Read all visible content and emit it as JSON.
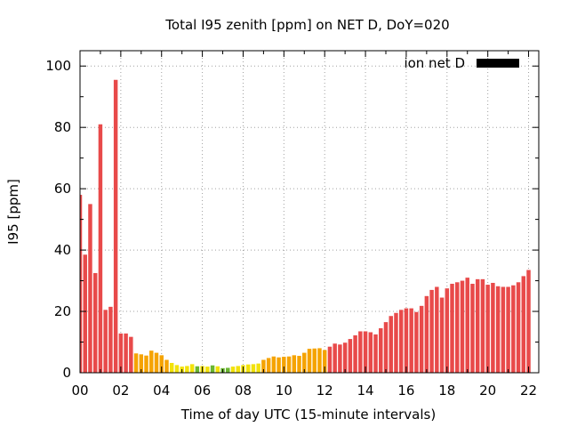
{
  "chart_data": {
    "type": "bar",
    "title": "Total I95 zenith [ppm] on NET D, DoY=020",
    "xlabel": "Time of day UTC (15-minute intervals)",
    "ylabel": "I95 [ppm]",
    "xlim": [
      0,
      22.5
    ],
    "ylim": [
      0,
      105
    ],
    "x_ticks": [
      "00",
      "02",
      "04",
      "06",
      "08",
      "10",
      "12",
      "14",
      "16",
      "18",
      "20",
      "22"
    ],
    "y_ticks": [
      "0",
      "20",
      "40",
      "60",
      "80",
      "100"
    ],
    "grid": true,
    "bar_interval_hours": 0.25,
    "legend": {
      "label": "ion net D",
      "position": "top-right",
      "color": "#000000"
    },
    "colors": {
      "red": "#e84a4a",
      "orange": "#f5a300",
      "yellow": "#f2e20a",
      "green": "#6ab630"
    },
    "series": [
      {
        "name": "ion net D",
        "values": [
          58,
          38.5,
          55,
          32.5,
          81,
          20.5,
          21.5,
          95.5,
          12.8,
          12.8,
          11.7,
          6.3,
          6,
          5.6,
          7.2,
          6.5,
          5.7,
          4.2,
          3.2,
          2.5,
          2,
          2.2,
          2.8,
          2.1,
          2.2,
          2,
          2.4,
          2.1,
          1.5,
          1.6,
          2,
          2.2,
          2.5,
          2.7,
          2.8,
          3,
          4.2,
          4.8,
          5.3,
          5,
          5.2,
          5.3,
          5.7,
          5.5,
          6.5,
          7.8,
          7.9,
          8,
          7.4,
          8.5,
          9.5,
          9.2,
          9.8,
          11,
          12.2,
          13.5,
          13.5,
          13.2,
          12.5,
          14.5,
          16.5,
          18.5,
          19.5,
          20.5,
          21,
          21,
          19.8,
          21.8,
          25,
          27,
          28,
          24.5,
          27.5,
          29,
          29.5,
          30,
          31,
          29,
          30.5,
          30.5,
          28.7,
          29.3,
          28.2,
          28,
          28,
          28.5,
          29.5,
          31.5,
          33.5
        ],
        "colors": [
          "red",
          "red",
          "red",
          "red",
          "red",
          "red",
          "red",
          "red",
          "red",
          "red",
          "red",
          "orange",
          "orange",
          "orange",
          "orange",
          "orange",
          "orange",
          "orange",
          "yellow",
          "yellow",
          "yellow",
          "yellow",
          "yellow",
          "green",
          "yellow",
          "yellow",
          "green",
          "yellow",
          "green",
          "green",
          "yellow",
          "yellow",
          "yellow",
          "yellow",
          "yellow",
          "yellow",
          "orange",
          "orange",
          "orange",
          "orange",
          "orange",
          "orange",
          "orange",
          "orange",
          "orange",
          "orange",
          "orange",
          "orange",
          "orange",
          "red",
          "red",
          "red",
          "red",
          "red",
          "red",
          "red",
          "red",
          "red",
          "red",
          "red",
          "red",
          "red",
          "red",
          "red",
          "red",
          "red",
          "red",
          "red",
          "red",
          "red",
          "red",
          "red",
          "red",
          "red",
          "red",
          "red",
          "red",
          "red",
          "red",
          "red",
          "red",
          "red",
          "red",
          "red",
          "red",
          "red",
          "red",
          "red",
          "red"
        ]
      }
    ]
  }
}
